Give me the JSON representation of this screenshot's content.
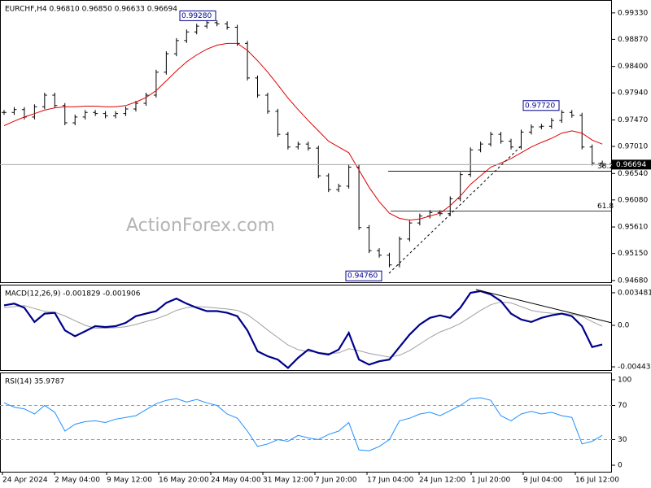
{
  "chart_data": [
    {
      "type": "price",
      "title": "EURCHF,H4  0.96810 0.96850 0.96633 0.96694",
      "watermark": "ActionForex.com",
      "series": [
        {
          "color": "#000000",
          "values": [
            0.976,
            0.9765,
            0.9752,
            0.977,
            0.979,
            0.9772,
            0.9742,
            0.9752,
            0.976,
            0.9758,
            0.9754,
            0.9758,
            0.9766,
            0.9776,
            0.979,
            0.983,
            0.9862,
            0.9885,
            0.99,
            0.991,
            0.9916,
            0.9914,
            0.9908,
            0.988,
            0.982,
            0.979,
            0.9762,
            0.9722,
            0.97,
            0.9705,
            0.9698,
            0.965,
            0.9626,
            0.9632,
            0.9665,
            0.956,
            0.952,
            0.9512,
            0.9495,
            0.954,
            0.9568,
            0.958,
            0.9586,
            0.9584,
            0.961,
            0.9652,
            0.9695,
            0.9705,
            0.9722,
            0.971,
            0.97,
            0.9726,
            0.9735,
            0.9736,
            0.9746,
            0.976,
            0.9755,
            0.97,
            0.9672,
            0.9669
          ]
        },
        {
          "color": "#e00000",
          "values": [
            0.9737,
            0.9745,
            0.9752,
            0.9758,
            0.9764,
            0.9768,
            0.977,
            0.977,
            0.9771,
            0.9771,
            0.977,
            0.977,
            0.9772,
            0.9778,
            0.9786,
            0.9798,
            0.9815,
            0.9832,
            0.9848,
            0.986,
            0.987,
            0.9877,
            0.988,
            0.988,
            0.9868,
            0.985,
            0.983,
            0.9808,
            0.9785,
            0.9765,
            0.9746,
            0.9728,
            0.971,
            0.97,
            0.969,
            0.966,
            0.963,
            0.9605,
            0.9585,
            0.9576,
            0.9573,
            0.9575,
            0.958,
            0.9585,
            0.9598,
            0.9615,
            0.9635,
            0.965,
            0.9665,
            0.9672,
            0.968,
            0.969,
            0.97,
            0.9708,
            0.9715,
            0.9724,
            0.9728,
            0.9724,
            0.9712,
            0.9705
          ]
        }
      ],
      "ylim": [
        0.9465,
        0.9954
      ],
      "yticks": [
        {
          "value": 0.9933,
          "label": "0.99330"
        },
        {
          "value": 0.9887,
          "label": "0.98870"
        },
        {
          "value": 0.984,
          "label": "0.98400"
        },
        {
          "value": 0.9794,
          "label": "0.97940"
        },
        {
          "value": 0.9747,
          "label": "0.97470"
        },
        {
          "value": 0.9701,
          "label": "0.97010"
        },
        {
          "value": 0.9654,
          "label": "0.96540"
        },
        {
          "value": 0.9608,
          "label": "0.96080"
        },
        {
          "value": 0.9561,
          "label": "0.95610"
        },
        {
          "value": 0.9515,
          "label": "0.95150"
        },
        {
          "value": 0.9468,
          "label": "0.94680"
        }
      ],
      "current_price": 0.96694,
      "annotations": [
        {
          "value": 0.9928,
          "label": "0.99280"
        },
        {
          "value": 0.9476,
          "label": "0.94760"
        },
        {
          "value": 0.9772,
          "label": "0.97720"
        }
      ],
      "levels": [
        {
          "value": 0.9658,
          "label": "38.2"
        },
        {
          "value": 0.95885,
          "label": "61.8"
        }
      ]
    },
    {
      "type": "macd",
      "title": "MACD(12,26,9) -0.001829 -0.001906",
      "series": [
        {
          "color": "#00008b",
          "values": [
            0.00214,
            0.00232,
            0.00188,
            0.00036,
            0.00125,
            0.00134,
            -0.00054,
            -0.00116,
            -0.00063,
            -9e-05,
            -0.00018,
            -9e-05,
            0.00027,
            0.00098,
            0.00125,
            0.00152,
            0.00241,
            0.00286,
            0.00232,
            0.00188,
            0.00152,
            0.00152,
            0.00134,
            0.00098,
            -0.00054,
            -0.00277,
            -0.0033,
            -0.00366,
            -0.00455,
            -0.00348,
            -0.00259,
            -0.00295,
            -0.00313,
            -0.00259,
            -0.0008,
            -0.00366,
            -0.0042,
            -0.00384,
            -0.00366,
            -0.00232,
            -0.00098,
            9e-05,
            0.0008,
            0.00107,
            0.0008,
            0.00188,
            0.00348,
            0.00366,
            0.0033,
            0.00259,
            0.00125,
            0.00063,
            0.00036,
            0.0008,
            0.00107,
            0.00125,
            0.00098,
            -9e-05,
            -0.00232,
            -0.00205
          ]
        },
        {
          "color": "#a0a0a0",
          "values": [
            0.0019,
            0.002,
            0.0021,
            0.0018,
            0.0015,
            0.0014,
            0.001,
            0.0005,
            0.0,
            -0.0003,
            -0.0003,
            -0.00025,
            -0.00015,
            0.0001,
            0.0004,
            0.0007,
            0.0011,
            0.0016,
            0.0019,
            0.002,
            0.00195,
            0.00185,
            0.00175,
            0.0016,
            0.00115,
            0.00035,
            -0.0005,
            -0.0013,
            -0.0021,
            -0.0026,
            -0.0028,
            -0.0029,
            -0.003,
            -0.00295,
            -0.0025,
            -0.0027,
            -0.003,
            -0.0032,
            -0.0034,
            -0.0032,
            -0.0027,
            -0.002,
            -0.0013,
            -0.0007,
            -0.0003,
            0.0002,
            0.0009,
            0.0016,
            0.0022,
            0.0025,
            0.0024,
            0.002,
            0.0016,
            0.0014,
            0.0013,
            0.00128,
            0.0012,
            0.00095,
            0.0004,
            -0.0001
          ]
        }
      ],
      "ylim": [
        -0.00478,
        0.00426
      ],
      "yticks": [
        0.003481,
        {
          "value": 0,
          "label": "0.0"
        },
        -0.004436
      ]
    },
    {
      "type": "rsi",
      "title": "RSI(14) 35.9787",
      "series": [
        {
          "color": "#1e90ff",
          "values": [
            73,
            68,
            66,
            60,
            70,
            62,
            40,
            48,
            51,
            52,
            50,
            54,
            56,
            58,
            65,
            72,
            76,
            78,
            74,
            77,
            73,
            70,
            60,
            55,
            40,
            22,
            25,
            30,
            28,
            35,
            32,
            30,
            36,
            40,
            50,
            18,
            17,
            22,
            30,
            52,
            55,
            60,
            62,
            58,
            64,
            70,
            78,
            79,
            76,
            58,
            52,
            60,
            63,
            60,
            62,
            58,
            56,
            25,
            28,
            35
          ]
        }
      ],
      "ylim": [
        -7.6,
        107.6
      ],
      "yticks": [
        100,
        70,
        30,
        0
      ],
      "levels": [
        70,
        30
      ],
      "x_labels": [
        "24 Apr 2024",
        "2 May 04:00",
        "9 May 12:00",
        "16 May 20:00",
        "24 May 04:00",
        "31 May 12:00",
        "7 Jun 20:00",
        "17 Jun 04:00",
        "24 Jun 12:00",
        "1 Jul 20:00",
        "9 Jul 04:00",
        "16 Jul 12:00"
      ]
    }
  ]
}
